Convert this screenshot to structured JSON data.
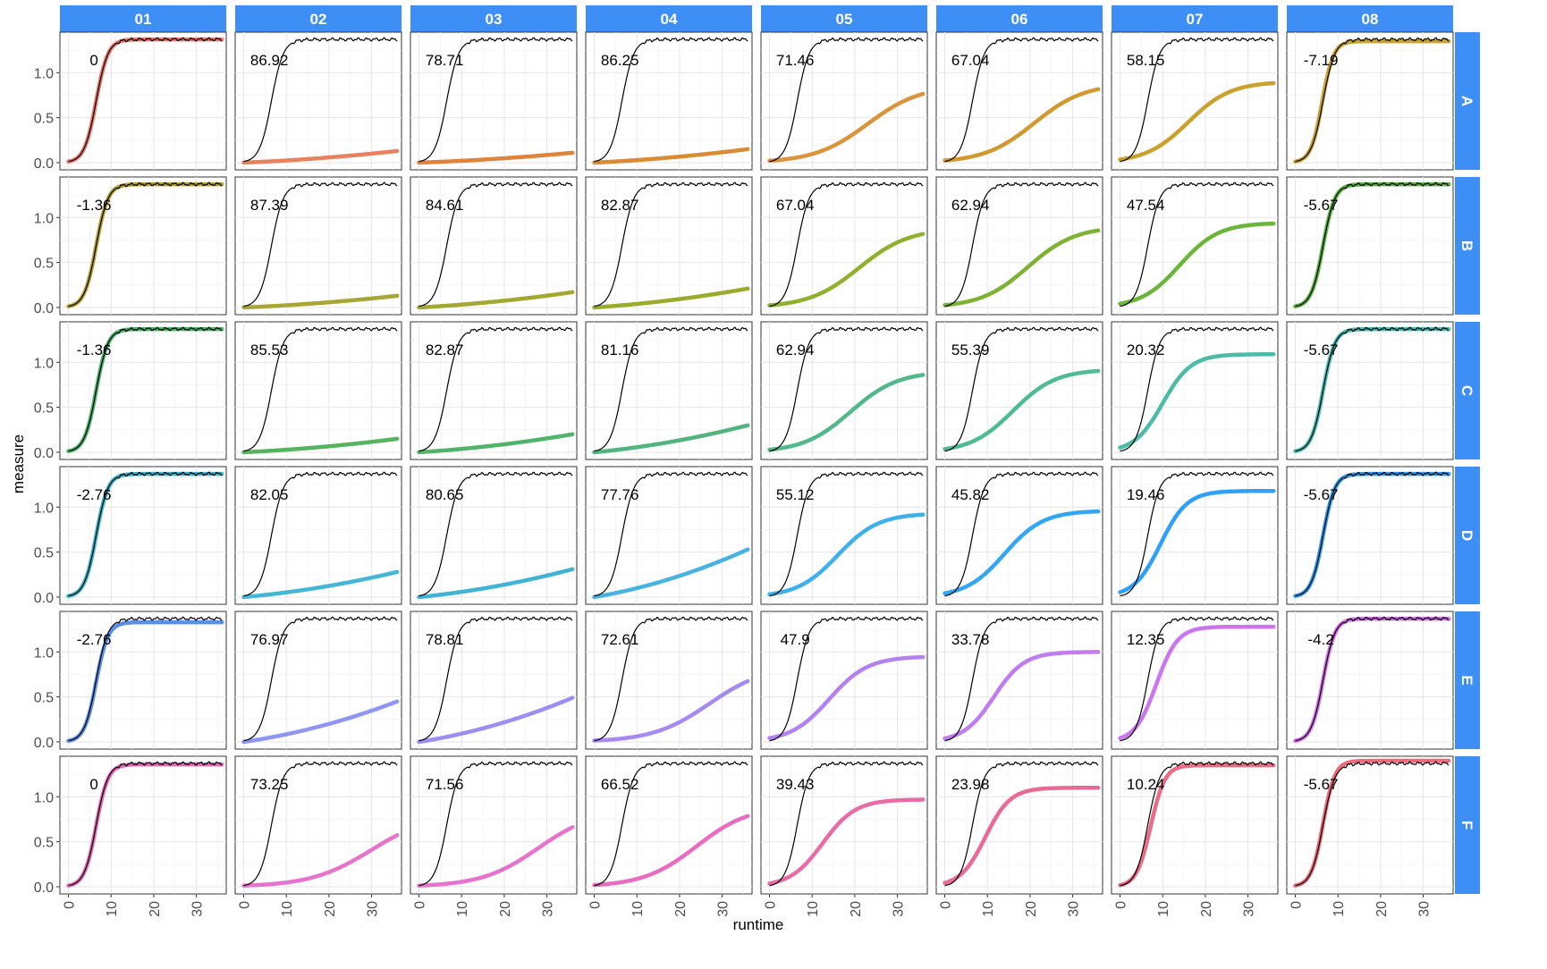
{
  "chart_data": {
    "type": "line",
    "xlabel": "runtime",
    "ylabel": "measure",
    "x_range": [
      0,
      36
    ],
    "xlim": [
      -2,
      37
    ],
    "ylim": [
      -0.08,
      1.45
    ],
    "x_ticks": [
      0,
      10,
      20,
      30
    ],
    "y_ticks": [
      0.0,
      0.5,
      1.0
    ],
    "y_tick_labels": [
      "0.0",
      "0.5",
      "1.0"
    ],
    "grid": true,
    "legend": "none",
    "strip_color": "#3d8ef5",
    "reference_series": {
      "color": "#000000",
      "plateau": 1.37,
      "midpoint": 6.5,
      "slope": 0.72
    },
    "columns": [
      "01",
      "02",
      "03",
      "04",
      "05",
      "06",
      "07",
      "08"
    ],
    "rows": [
      {
        "name": "A",
        "color": "#e8776e",
        "labels": [
          "0",
          "86.92",
          "78.71",
          "86.25",
          "71.46",
          "67.04",
          "58.15",
          "-7.19"
        ],
        "curves": [
          {
            "plateau": 1.37,
            "mid": 6.5,
            "slope": 0.72
          },
          {
            "linear": [
              0.0,
              0.13
            ]
          },
          {
            "linear": [
              0.0,
              0.11
            ]
          },
          {
            "linear": [
              0.0,
              0.15
            ]
          },
          {
            "plateau": 0.86,
            "mid": 23,
            "slope": 0.16
          },
          {
            "plateau": 0.88,
            "mid": 21,
            "slope": 0.17
          },
          {
            "plateau": 0.9,
            "mid": 16,
            "slope": 0.2
          },
          {
            "plateau": 1.35,
            "mid": 6.3,
            "slope": 0.75
          }
        ]
      },
      {
        "name": "B",
        "color": "#b5a12c",
        "labels": [
          "-1.36",
          "87.39",
          "84.61",
          "82.87",
          "67.04",
          "62.94",
          "47.54",
          "-5.67"
        ],
        "curves": [
          {
            "plateau": 1.37,
            "mid": 6.5,
            "slope": 0.72
          },
          {
            "linear": [
              0.0,
              0.13
            ]
          },
          {
            "linear": [
              0.0,
              0.17
            ]
          },
          {
            "linear": [
              0.0,
              0.21
            ]
          },
          {
            "plateau": 0.88,
            "mid": 21,
            "slope": 0.17
          },
          {
            "plateau": 0.9,
            "mid": 19.5,
            "slope": 0.18
          },
          {
            "plateau": 0.94,
            "mid": 14,
            "slope": 0.22
          },
          {
            "plateau": 1.37,
            "mid": 6.5,
            "slope": 0.72
          }
        ]
      },
      {
        "name": "C",
        "color": "#4db26a",
        "labels": [
          "-1.36",
          "85.53",
          "82.87",
          "81.16",
          "62.94",
          "55.39",
          "20.32",
          "-5.67"
        ],
        "curves": [
          {
            "plateau": 1.37,
            "mid": 6.5,
            "slope": 0.72
          },
          {
            "linear": [
              0.0,
              0.15
            ]
          },
          {
            "linear": [
              0.0,
              0.2
            ]
          },
          {
            "linear": [
              0.0,
              0.3
            ]
          },
          {
            "plateau": 0.9,
            "mid": 19,
            "slope": 0.18
          },
          {
            "plateau": 0.92,
            "mid": 16,
            "slope": 0.2
          },
          {
            "plateau": 1.09,
            "mid": 10,
            "slope": 0.3
          },
          {
            "plateau": 1.37,
            "mid": 6.5,
            "slope": 0.72
          }
        ]
      },
      {
        "name": "D",
        "color": "#3bb4c9",
        "labels": [
          "-2.76",
          "82.05",
          "80.65",
          "77.76",
          "55.12",
          "45.82",
          "19.46",
          "-5.67"
        ],
        "curves": [
          {
            "plateau": 1.37,
            "mid": 6.5,
            "slope": 0.72
          },
          {
            "linear": [
              0.0,
              0.28
            ]
          },
          {
            "linear": [
              0.0,
              0.31
            ]
          },
          {
            "linear": [
              0.0,
              0.53
            ]
          },
          {
            "plateau": 0.93,
            "mid": 16,
            "slope": 0.21
          },
          {
            "plateau": 0.96,
            "mid": 14,
            "slope": 0.22
          },
          {
            "plateau": 1.18,
            "mid": 9.5,
            "slope": 0.32
          },
          {
            "plateau": 1.37,
            "mid": 6.5,
            "slope": 0.72
          }
        ]
      },
      {
        "name": "E",
        "color": "#8f96f2",
        "labels": [
          "-2.76",
          "76.97",
          "78.81",
          "72.61",
          "47.9",
          "33.78",
          "12.35",
          "-4.2"
        ],
        "curves": [
          {
            "plateau": 1.33,
            "mid": 6.5,
            "slope": 0.72
          },
          {
            "linear": [
              0.0,
              0.45
            ]
          },
          {
            "linear": [
              0.0,
              0.49
            ]
          },
          {
            "plateau": 0.85,
            "mid": 27,
            "slope": 0.15
          },
          {
            "plateau": 0.95,
            "mid": 14,
            "slope": 0.22
          },
          {
            "plateau": 1.0,
            "mid": 11.5,
            "slope": 0.28
          },
          {
            "plateau": 1.28,
            "mid": 8.5,
            "slope": 0.4
          },
          {
            "plateau": 1.37,
            "mid": 6.5,
            "slope": 0.72
          }
        ]
      },
      {
        "name": "F",
        "color": "#e46ab4",
        "labels": [
          "0",
          "73.25",
          "71.56",
          "66.52",
          "39.43",
          "23.98",
          "10.24",
          "-5.67"
        ],
        "curves": [
          {
            "plateau": 1.36,
            "mid": 6.5,
            "slope": 0.72
          },
          {
            "plateau": 0.82,
            "mid": 30,
            "slope": 0.14
          },
          {
            "plateau": 0.86,
            "mid": 28,
            "slope": 0.15
          },
          {
            "plateau": 0.9,
            "mid": 24,
            "slope": 0.16
          },
          {
            "plateau": 0.97,
            "mid": 12.5,
            "slope": 0.26
          },
          {
            "plateau": 1.1,
            "mid": 9.5,
            "slope": 0.34
          },
          {
            "plateau": 1.35,
            "mid": 7.2,
            "slope": 0.6
          },
          {
            "plateau": 1.4,
            "mid": 6.5,
            "slope": 0.72
          }
        ]
      }
    ],
    "column_colors": {
      "A": [
        "#e8776e",
        "#e8825e",
        "#e0843c",
        "#d98c34",
        "#d9943c",
        "#d09a30",
        "#c9a12c",
        "#c9a12c"
      ],
      "B": [
        "#b5a12c",
        "#a8a634",
        "#a3a832",
        "#9bab2c",
        "#90b02e",
        "#7eb233",
        "#6bb63a",
        "#5ab33c"
      ],
      "C": [
        "#4db26a",
        "#56b35e",
        "#52b46a",
        "#52b580",
        "#52b889",
        "#4fbb93",
        "#4dbba6",
        "#45bcb6"
      ],
      "D": [
        "#3bb4c9",
        "#44b6d6",
        "#41b4d6",
        "#48b3e0",
        "#3fb0ea",
        "#33a6f2",
        "#2f9ff7",
        "#2f98f0"
      ],
      "E": [
        "#5b8ee6",
        "#8f96f2",
        "#9b8ef2",
        "#a58af2",
        "#b283f0",
        "#bf7df0",
        "#cb76ee",
        "#d36de8"
      ],
      "F": [
        "#e46ab4",
        "#e673cc",
        "#e673cc",
        "#e86cc0",
        "#e86da6",
        "#ea6a96",
        "#ec6c86",
        "#ee6b7c"
      ]
    }
  }
}
